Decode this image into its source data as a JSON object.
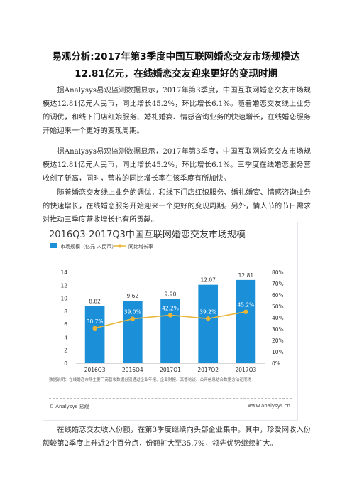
{
  "document": {
    "title": "易观分析:2017年第3季度中国互联网婚恋交友市场规模达12.81亿元，在线婚恋交友迎来更好的变现时期",
    "paragraphs": [
      "据Analysys易观监测数据显示，2017年第3季度，中国互联网婚恋交友市场规模达12.81亿元人民币，同比增长45.2%，环比增长6.1%。随着婚恋交友线上业务的调优，和线下门店红娘服务、婚礼婚宴、情感咨询业务的快速增长，在线婚恋服务开始迎来一个更好的变现周期。",
      "据Analysys易观监测数据显示，2017年第3季度，中国互联网婚恋交友市场规模达12.81亿元人民币，同比增长45.2%，环比增长6.1%。三季度在线婚恋服务营收创了新高，同时，营收的同比增长率在该季度有所加快。",
      "随着婚恋交友线上业务的调优，和线下门店红娘服务、婚礼婚宴、情感咨询业务的快速增长，在线婚恋服务开始迎来一个更好的变现周期。另外，情人节的节日需求对推动三季度营收增长也有所贡献。",
      "在线婚恋交友收入份额，在第3季度继续向头部企业集中。其中，珍爱网收入份额较第2季度上升近2个百分点，份额扩大至35.7%，领先优势继续扩大。"
    ]
  },
  "chart_data": {
    "type": "bar",
    "title": "2016Q3-2017Q3中国互联网婚恋交友市场规模",
    "categories": [
      "2016Q3",
      "2016Q4",
      "2017Q1",
      "2017Q2",
      "2017Q3"
    ],
    "series": [
      {
        "name": "市场规模（亿元 人民币）",
        "type": "bar",
        "axis": "left",
        "values": [
          8.82,
          9.62,
          9.9,
          12.07,
          12.81
        ],
        "color": "#1b8fd8"
      },
      {
        "name": "同比增长率",
        "type": "line",
        "axis": "right",
        "values": [
          30.7,
          39.0,
          42.2,
          39.2,
          45.2
        ],
        "color": "#e8b73a"
      }
    ],
    "bar_labels": [
      "8.82",
      "9.62",
      "9.90",
      "12.07",
      "12.81"
    ],
    "line_labels": [
      "30.7%",
      "39.0%",
      "42.2%",
      "39.2%",
      "45.2%"
    ],
    "y_left": {
      "ticks": [
        "0",
        "2",
        "4",
        "6",
        "8",
        "10",
        "12",
        "14"
      ],
      "ylim": [
        0,
        14
      ]
    },
    "y_right": {
      "ticks": [
        "0%",
        "10%",
        "20%",
        "30%",
        "40%",
        "50%",
        "60%",
        "70%",
        "80%"
      ],
      "ylim": [
        0,
        80
      ]
    },
    "legend_placement": "top-left",
    "grid": false,
    "note": "数据说明：在线婚恋市场主要厂商营收数据分别通过企业年报、企业财报、高管访谈、公开信息结合数据方法论而得",
    "footer_left": "© Analysys 易观",
    "footer_right": "www.analysys.cn"
  }
}
